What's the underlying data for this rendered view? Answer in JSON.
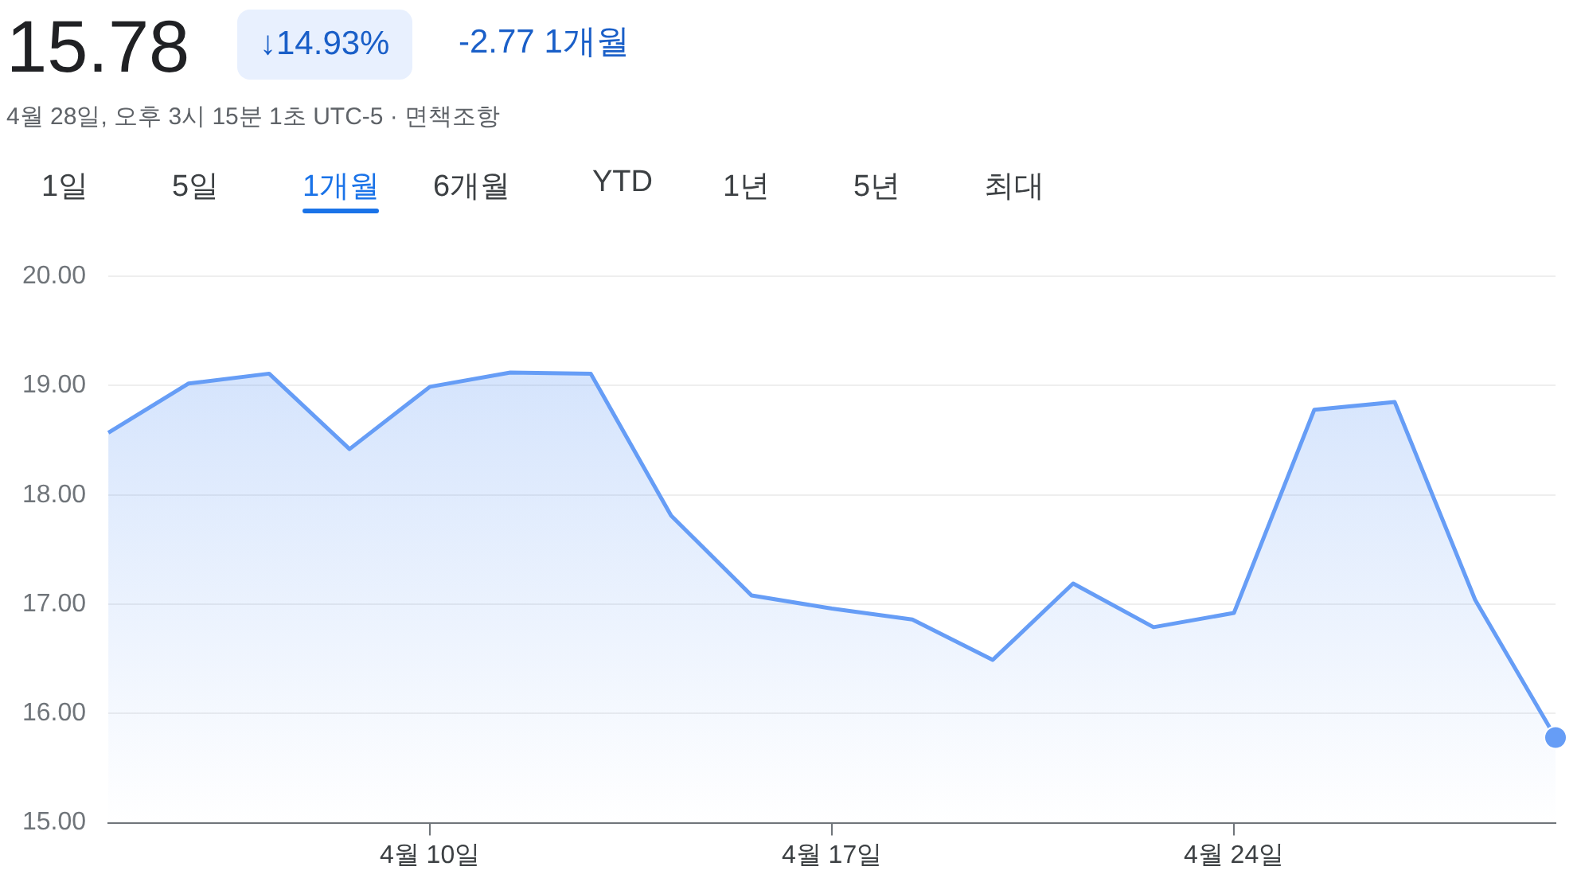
{
  "chart_data": {
    "type": "area",
    "title": "15.78",
    "subtitle": "4월 28일, 오후 3시 15분 1초 UTC-5 · 면책조항",
    "annotations": [
      "↓14.93%",
      "-2.77 1개월",
      "1일",
      "5일",
      "1개월",
      "6개월",
      "YTD",
      "1년",
      "5년",
      "최대"
    ],
    "categories": [
      null,
      null,
      null,
      null,
      "4월 10일",
      null,
      null,
      null,
      null,
      "4월 17일",
      null,
      null,
      null,
      null,
      "4월 24일",
      null,
      null,
      null,
      null
    ],
    "series": [
      {
        "color": "#669df6",
        "values": [
          18.57,
          19.02,
          19.11,
          18.42,
          18.99,
          19.12,
          19.11,
          17.81,
          17.08,
          16.96,
          16.86,
          16.49,
          17.19,
          16.79,
          16.92,
          18.78,
          18.85,
          17.04,
          15.78
        ]
      }
    ],
    "ylim": [
      15,
      20
    ],
    "yticks": [
      {
        "value": 15,
        "label": "15.00"
      },
      {
        "value": 16,
        "label": "16.00"
      },
      {
        "value": 17,
        "label": "17.00"
      },
      {
        "value": 18,
        "label": "18.00"
      },
      {
        "value": 19,
        "label": "19.00"
      },
      {
        "value": 20,
        "label": "20.00"
      }
    ],
    "grid": "y",
    "legend": false
  }
}
